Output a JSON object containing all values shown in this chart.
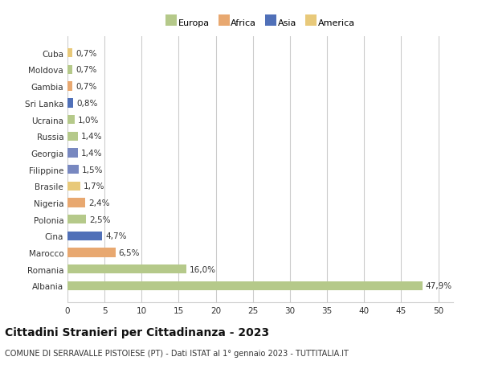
{
  "categories": [
    "Cuba",
    "Moldova",
    "Gambia",
    "Sri Lanka",
    "Ucraina",
    "Russia",
    "Georgia",
    "Filippine",
    "Brasile",
    "Nigeria",
    "Polonia",
    "Cina",
    "Marocco",
    "Romania",
    "Albania"
  ],
  "values": [
    0.7,
    0.7,
    0.7,
    0.8,
    1.0,
    1.4,
    1.4,
    1.5,
    1.7,
    2.4,
    2.5,
    4.7,
    6.5,
    16.0,
    47.9
  ],
  "labels": [
    "0,7%",
    "0,7%",
    "0,7%",
    "0,8%",
    "1,0%",
    "1,4%",
    "1,4%",
    "1,5%",
    "1,7%",
    "2,4%",
    "2,5%",
    "4,7%",
    "6,5%",
    "16,0%",
    "47,9%"
  ],
  "colors": [
    "#e8c97a",
    "#b5c98a",
    "#e8a870",
    "#5070b8",
    "#b5c98a",
    "#b5c98a",
    "#7888c0",
    "#7888c0",
    "#e8c97a",
    "#e8a870",
    "#b5c98a",
    "#5070b8",
    "#e8a870",
    "#b5c98a",
    "#b5c98a"
  ],
  "legend_labels": [
    "Europa",
    "Africa",
    "Asia",
    "America"
  ],
  "legend_colors": [
    "#b5c98a",
    "#e8a870",
    "#5070b8",
    "#e8c97a"
  ],
  "title1": "Cittadini Stranieri per Cittadinanza - 2023",
  "title2": "COMUNE DI SERRAVALLE PISTOIESE (PT) - Dati ISTAT al 1° gennaio 2023 - TUTTITALIA.IT",
  "xlim": [
    0,
    52
  ],
  "xticks": [
    0,
    5,
    10,
    15,
    20,
    25,
    30,
    35,
    40,
    45,
    50
  ],
  "background_color": "#ffffff",
  "grid_color": "#cccccc",
  "bar_height": 0.55,
  "label_fontsize": 7.5,
  "tick_fontsize": 7.5,
  "title1_fontsize": 10,
  "title2_fontsize": 7
}
